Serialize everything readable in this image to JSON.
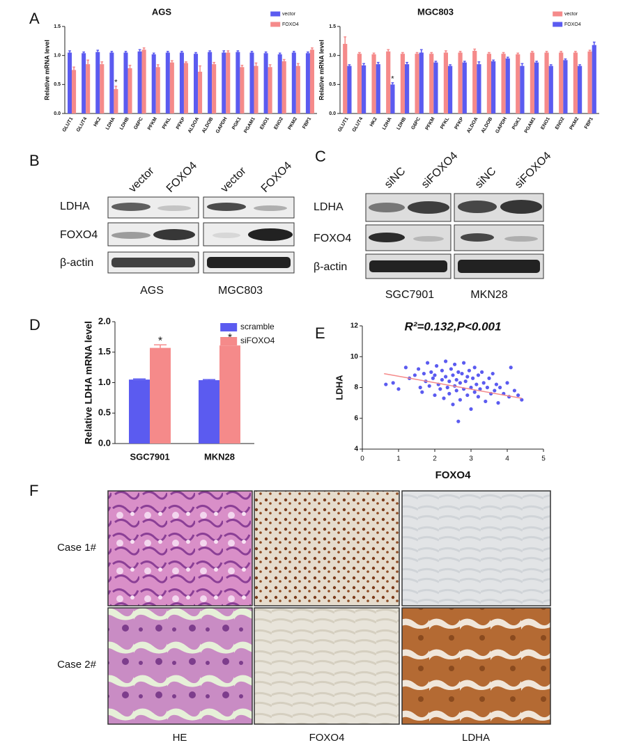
{
  "chart_data": [
    {
      "type": "bar",
      "title": "AGS",
      "y_label": "Relative mRNA level",
      "categories": [
        "GLUT1",
        "GLUT4",
        "HK2",
        "LDHA",
        "LDHB",
        "G6PC",
        "PFKM",
        "PFKL",
        "PFKP",
        "ALDOA",
        "ALDOB",
        "GAPDH",
        "PGK1",
        "PGAM1",
        "ENO1",
        "ENO2",
        "PKM2",
        "FBP1"
      ],
      "series": [
        {
          "name": "vector",
          "color": "#5b5bf0",
          "values": [
            1.05,
            1.04,
            1.06,
            1.05,
            1.05,
            1.07,
            1.02,
            1.05,
            1.05,
            1.03,
            1.06,
            1.05,
            1.06,
            1.05,
            1.04,
            1.02,
            1.05,
            1.04
          ],
          "errors": [
            0.03,
            0.02,
            0.03,
            0.02,
            0.02,
            0.03,
            0.02,
            0.02,
            0.02,
            0.02,
            0.02,
            0.03,
            0.02,
            0.02,
            0.02,
            0.02,
            0.02,
            0.02
          ]
        },
        {
          "name": "FOXO4",
          "color": "#f58a8a",
          "values": [
            0.75,
            0.85,
            0.85,
            0.42,
            0.78,
            1.1,
            0.8,
            0.88,
            0.87,
            0.72,
            0.85,
            1.05,
            0.8,
            0.82,
            0.8,
            0.9,
            0.82,
            1.1
          ],
          "errors": [
            0.05,
            0.07,
            0.04,
            0.05,
            0.05,
            0.03,
            0.04,
            0.03,
            0.02,
            0.1,
            0.03,
            0.03,
            0.03,
            0.05,
            0.04,
            0.03,
            0.04,
            0.03
          ],
          "annotations": [
            null,
            null,
            null,
            "*",
            null,
            null,
            null,
            null,
            null,
            null,
            null,
            null,
            null,
            null,
            null,
            null,
            null,
            null
          ]
        }
      ],
      "ylim": [
        0,
        1.5
      ],
      "yticks": [
        {
          "value": 0,
          "label": "0.0"
        },
        0.5,
        {
          "value": 1,
          "label": "1.0"
        },
        1.5
      ]
    },
    {
      "type": "bar",
      "title": "MGC803",
      "y_label": "Relative mRNA level",
      "categories": [
        "GLUT1",
        "GLUT4",
        "HK2",
        "LDHA",
        "LDHB",
        "G6PC",
        "PFKM",
        "PFKL",
        "PFKP",
        "ALDOA",
        "ALDOB",
        "GAPDH",
        "PGK1",
        "PGAM1",
        "ENO1",
        "ENO2",
        "PKM2",
        "FBP1"
      ],
      "series": [
        {
          "name": "vector",
          "color": "#f58a8a",
          "values": [
            1.2,
            1.03,
            1.02,
            1.07,
            1.03,
            1.03,
            1.03,
            1.05,
            1.05,
            1.08,
            1.03,
            1.03,
            1.02,
            1.05,
            1.05,
            1.05,
            1.05,
            1.07
          ],
          "errors": [
            0.12,
            0.02,
            0.02,
            0.03,
            0.02,
            0.02,
            0.02,
            0.03,
            0.02,
            0.03,
            0.02,
            0.02,
            0.02,
            0.02,
            0.02,
            0.02,
            0.02,
            0.02
          ]
        },
        {
          "name": "FOXO4",
          "color": "#5b5bf0",
          "values": [
            0.82,
            0.83,
            0.85,
            0.5,
            0.85,
            1.05,
            0.88,
            0.82,
            0.88,
            0.85,
            0.9,
            0.95,
            0.82,
            0.88,
            0.82,
            0.92,
            0.82,
            1.18
          ],
          "errors": [
            0.02,
            0.03,
            0.03,
            0.03,
            0.03,
            0.05,
            0.02,
            0.02,
            0.02,
            0.04,
            0.02,
            0.02,
            0.04,
            0.02,
            0.02,
            0.02,
            0.02,
            0.05
          ],
          "annotations": [
            null,
            null,
            null,
            "*",
            null,
            null,
            null,
            null,
            null,
            null,
            null,
            null,
            null,
            null,
            null,
            null,
            null,
            null
          ]
        }
      ],
      "ylim": [
        0,
        1.5
      ],
      "yticks": [
        {
          "value": 0,
          "label": "0.0"
        },
        0.5,
        {
          "value": 1,
          "label": "1.0"
        },
        1.5
      ]
    },
    {
      "type": "bar",
      "y_label": "Relative LDHA mRNA level",
      "categories": [
        "SGC7901",
        "MKN28"
      ],
      "series": [
        {
          "name": "scramble",
          "color": "#5b5bf0",
          "values": [
            1.05,
            1.04
          ],
          "errors": [
            0.01,
            0.01
          ]
        },
        {
          "name": "siFOXO4",
          "color": "#f58a8a",
          "values": [
            1.57,
            1.61
          ],
          "errors": [
            0.05,
            0.06
          ],
          "annotations": [
            "*",
            "*"
          ]
        }
      ],
      "ylim": [
        0,
        2
      ],
      "yticks": [
        {
          "value": 0,
          "label": "0.0"
        },
        0.5,
        {
          "value": 1,
          "label": "1.0"
        },
        1.5,
        {
          "value": 2,
          "label": "2.0"
        }
      ]
    },
    {
      "type": "scatter",
      "title": "R²=0.132,P<0.001",
      "x_label": "FOXO4",
      "y_label": "LDHA",
      "color": "#5b5bf0",
      "x": [
        0.65,
        0.85,
        1.0,
        1.2,
        1.3,
        1.45,
        1.55,
        1.6,
        1.65,
        1.7,
        1.75,
        1.8,
        1.85,
        1.9,
        1.95,
        2.0,
        2.0,
        2.05,
        2.1,
        2.15,
        2.2,
        2.2,
        2.25,
        2.3,
        2.3,
        2.35,
        2.4,
        2.4,
        2.45,
        2.5,
        2.5,
        2.55,
        2.55,
        2.6,
        2.6,
        2.65,
        2.65,
        2.7,
        2.7,
        2.75,
        2.8,
        2.8,
        2.85,
        2.9,
        2.9,
        2.95,
        3.0,
        3.0,
        3.05,
        3.1,
        3.1,
        3.15,
        3.2,
        3.2,
        3.25,
        3.3,
        3.35,
        3.4,
        3.45,
        3.5,
        3.55,
        3.6,
        3.65,
        3.7,
        3.75,
        3.8,
        3.9,
        4.0,
        4.05,
        4.1,
        4.2,
        4.3,
        4.4
      ],
      "values": [
        8.2,
        8.3,
        7.9,
        9.3,
        8.6,
        8.8,
        9.2,
        8.0,
        7.7,
        8.9,
        8.4,
        9.6,
        8.1,
        9.0,
        8.6,
        7.5,
        8.8,
        9.4,
        8.2,
        7.9,
        9.1,
        8.5,
        7.3,
        8.7,
        9.7,
        8.0,
        8.4,
        7.6,
        9.2,
        8.8,
        6.9,
        8.1,
        9.5,
        7.8,
        8.5,
        5.8,
        9.0,
        8.3,
        7.2,
        8.9,
        7.9,
        9.6,
        8.4,
        7.5,
        8.7,
        9.1,
        8.0,
        6.6,
        8.6,
        7.7,
        9.3,
        8.2,
        7.4,
        8.8,
        7.9,
        9.0,
        8.3,
        7.1,
        8.0,
        8.6,
        7.6,
        8.9,
        7.8,
        8.2,
        7.0,
        8.0,
        7.6,
        8.3,
        7.4,
        9.3,
        7.8,
        7.5,
        7.2
      ],
      "trendline": {
        "color": "#f58a8a",
        "x": [
          0.6,
          4.4
        ],
        "y": [
          8.9,
          7.3
        ]
      },
      "xlim": [
        0,
        5
      ],
      "xticks": [
        0,
        1,
        2,
        3,
        4,
        5
      ],
      "ylim": [
        4,
        12
      ],
      "yticks": [
        4,
        6,
        8,
        10,
        12
      ]
    }
  ],
  "panel_labels": [
    "A",
    "B",
    "C",
    "D",
    "E",
    "F"
  ],
  "blot_b": {
    "lanes": [
      "vector",
      "FOXO4",
      "vector",
      "FOXO4"
    ],
    "rows": [
      "LDHA",
      "FOXO4",
      "β-actin"
    ],
    "cell_lines": [
      "AGS",
      "MGC803"
    ]
  },
  "blot_c": {
    "lanes": [
      "siNC",
      "siFOXO4",
      "siNC",
      "siFOXO4"
    ],
    "rows": [
      "LDHA",
      "FOXO4",
      "β-actin"
    ],
    "cell_lines": [
      "SGC7901",
      "MKN28"
    ]
  },
  "ihc": {
    "rows": [
      "Case 1#",
      "Case 2#"
    ],
    "columns": [
      "HE",
      "FOXO4",
      "LDHA"
    ]
  }
}
